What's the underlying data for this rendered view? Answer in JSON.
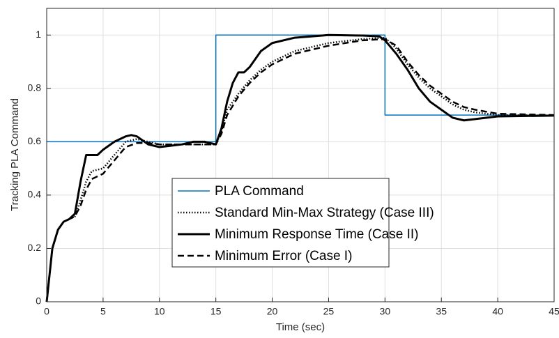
{
  "chart_data": {
    "type": "line",
    "xlabel": "Time (sec)",
    "ylabel": "Tracking PLA Command",
    "xlim": [
      0,
      45
    ],
    "xticks": [
      0,
      5,
      10,
      15,
      20,
      25,
      30,
      35,
      40,
      45
    ],
    "ylim": [
      0,
      1.1
    ],
    "yticks": [
      0,
      0.2,
      0.4,
      0.6,
      0.8,
      1
    ],
    "grid": true,
    "legend": "center",
    "series": [
      {
        "name": "PLA Command",
        "color": "#0072bd",
        "linestyle": "solid",
        "x": [
          0,
          15,
          15,
          30,
          30,
          45
        ],
        "values": [
          0.6,
          0.6,
          1,
          1,
          0.7,
          0.7
        ]
      },
      {
        "name": "Standard Min-Max Strategy (Case III)",
        "color": "#000000",
        "linestyle": "dotted",
        "x": [
          0,
          0.5,
          1,
          1.5,
          2,
          2.5,
          3,
          3.5,
          4,
          5,
          6,
          7,
          8,
          9,
          10,
          12,
          14,
          15,
          15.5,
          16,
          17,
          18,
          19,
          20,
          22,
          25,
          28,
          30,
          31,
          32,
          33,
          34,
          35,
          36,
          37,
          38,
          40,
          45
        ],
        "values": [
          0,
          0.2,
          0.27,
          0.3,
          0.31,
          0.32,
          0.38,
          0.45,
          0.49,
          0.5,
          0.55,
          0.6,
          0.61,
          0.6,
          0.59,
          0.59,
          0.59,
          0.59,
          0.64,
          0.72,
          0.78,
          0.83,
          0.87,
          0.9,
          0.94,
          0.97,
          0.985,
          0.99,
          0.95,
          0.89,
          0.84,
          0.8,
          0.77,
          0.74,
          0.72,
          0.71,
          0.7,
          0.698
        ]
      },
      {
        "name": "Minimum Response Time (Case II)",
        "color": "#000000",
        "linestyle": "solid",
        "x": [
          0,
          0.5,
          1,
          1.5,
          2,
          2.5,
          3,
          3.5,
          4,
          4.5,
          5,
          6,
          7,
          7.5,
          8,
          9,
          10,
          11,
          12,
          13,
          14,
          15,
          15.5,
          16,
          16.5,
          17,
          17.5,
          18,
          19,
          20,
          22,
          25,
          28,
          29.5,
          30,
          31,
          32,
          33,
          34,
          35,
          36,
          37,
          38,
          40,
          45
        ],
        "values": [
          0,
          0.2,
          0.27,
          0.3,
          0.31,
          0.33,
          0.45,
          0.55,
          0.55,
          0.55,
          0.57,
          0.6,
          0.62,
          0.625,
          0.62,
          0.59,
          0.58,
          0.585,
          0.59,
          0.6,
          0.6,
          0.59,
          0.65,
          0.75,
          0.82,
          0.86,
          0.86,
          0.88,
          0.94,
          0.97,
          0.99,
          1,
          0.998,
          0.995,
          0.98,
          0.93,
          0.87,
          0.8,
          0.75,
          0.72,
          0.69,
          0.68,
          0.685,
          0.695,
          0.698
        ]
      },
      {
        "name": "Minimum Error (Case I)",
        "color": "#000000",
        "linestyle": "dashed",
        "x": [
          0,
          0.5,
          1,
          1.5,
          2,
          2.5,
          3,
          3.5,
          4,
          5,
          6,
          7,
          8,
          9,
          10,
          12,
          15,
          15.5,
          16,
          17,
          18,
          19,
          20,
          22,
          25,
          28,
          30,
          31,
          32,
          33,
          34,
          35,
          36,
          37,
          38,
          40,
          45
        ],
        "values": [
          0,
          0.2,
          0.27,
          0.3,
          0.31,
          0.32,
          0.36,
          0.42,
          0.46,
          0.48,
          0.53,
          0.58,
          0.595,
          0.595,
          0.59,
          0.59,
          0.59,
          0.63,
          0.7,
          0.77,
          0.82,
          0.86,
          0.89,
          0.93,
          0.96,
          0.98,
          0.985,
          0.96,
          0.9,
          0.85,
          0.81,
          0.78,
          0.75,
          0.73,
          0.72,
          0.705,
          0.7
        ]
      }
    ]
  }
}
